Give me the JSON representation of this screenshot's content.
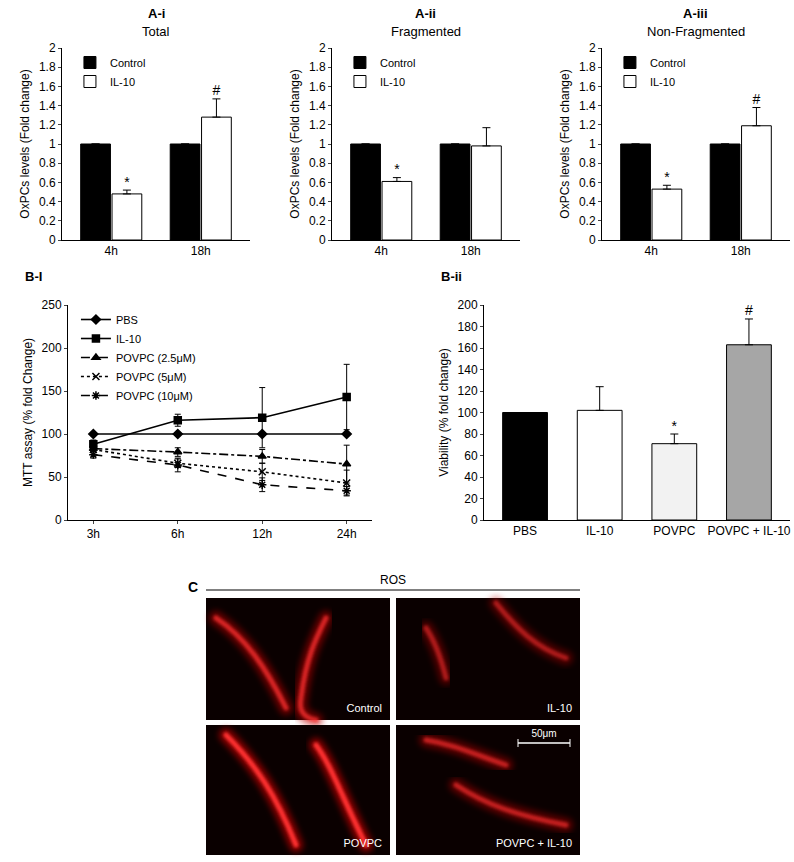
{
  "chart_data": [
    {
      "type": "bar",
      "label": "A-i",
      "title": "Total",
      "y_label": "OxPCs levels (Fold change)",
      "categories": [
        "4h",
        "18h"
      ],
      "series": [
        {
          "name": "Control",
          "color": "#000000",
          "values": [
            1,
            1
          ],
          "errors": [
            0,
            0
          ]
        },
        {
          "name": "IL-10",
          "color": "#ffffff",
          "values": [
            0.48,
            1.28
          ],
          "errors": [
            0.04,
            0.19
          ],
          "annotations": [
            "*",
            "#"
          ]
        }
      ],
      "ylim": [
        0,
        2
      ],
      "yticks": [
        0,
        0.2,
        0.4,
        0.6,
        0.8,
        1,
        1.2,
        1.4,
        1.6,
        1.8,
        2
      ],
      "legend": "upper left"
    },
    {
      "type": "bar",
      "label": "A-ii",
      "title": "Fragmented",
      "y_label": "OxPCs levels (Fold change)",
      "categories": [
        "4h",
        "18h"
      ],
      "series": [
        {
          "name": "Control",
          "color": "#000000",
          "values": [
            1,
            1
          ],
          "errors": [
            0,
            0
          ]
        },
        {
          "name": "IL-10",
          "color": "#ffffff",
          "values": [
            0.61,
            0.98
          ],
          "errors": [
            0.04,
            0.19
          ],
          "annotations": [
            "*",
            null
          ]
        }
      ],
      "ylim": [
        0,
        2
      ],
      "yticks": [
        0,
        0.2,
        0.4,
        0.6,
        0.8,
        1,
        1.2,
        1.4,
        1.6,
        1.8,
        2
      ],
      "legend": "upper left"
    },
    {
      "type": "bar",
      "label": "A-iii",
      "title": "Non-Fragmented",
      "y_label": "OxPCs levels (Fold change)",
      "categories": [
        "4h",
        "18h"
      ],
      "series": [
        {
          "name": "Control",
          "color": "#000000",
          "values": [
            1,
            1
          ],
          "errors": [
            0,
            0
          ]
        },
        {
          "name": "IL-10",
          "color": "#ffffff",
          "values": [
            0.53,
            1.19
          ],
          "errors": [
            0.04,
            0.19
          ],
          "annotations": [
            "*",
            "#"
          ]
        }
      ],
      "ylim": [
        0,
        2
      ],
      "yticks": [
        0,
        0.2,
        0.4,
        0.6,
        0.8,
        1,
        1.2,
        1.4,
        1.6,
        1.8,
        2
      ],
      "legend": "upper left"
    },
    {
      "type": "line",
      "label": "B-I",
      "y_label": "MTT assay (% fold Change)",
      "categories": [
        "3h",
        "6h",
        "12h",
        "24h"
      ],
      "series": [
        {
          "name": "PBS",
          "color": "#000000",
          "values": [
            100,
            100,
            100,
            100
          ],
          "marker": "diamond",
          "line_style": "solid"
        },
        {
          "name": "IL-10",
          "color": "#000000",
          "values": [
            88,
            116,
            119,
            143
          ],
          "errors": [
            5,
            7,
            35,
            38
          ],
          "marker": "square",
          "line_style": "solid"
        },
        {
          "name": "POVPC (2.5μM)",
          "color": "#000000",
          "values": [
            83,
            79,
            74,
            65
          ],
          "errors": [
            3,
            5,
            8,
            22
          ],
          "marker": "triangle",
          "line_style": "dashdot"
        },
        {
          "name": "POVPC (5μM)",
          "color": "#000000",
          "values": [
            82,
            66,
            56,
            43
          ],
          "errors": [
            3,
            5,
            10,
            15
          ],
          "marker": "x",
          "line_style": "dotted"
        },
        {
          "name": "POVPC (10μM)",
          "color": "#000000",
          "values": [
            76,
            64,
            41,
            34
          ],
          "errors": [
            4,
            8,
            8,
            5
          ],
          "marker": "asterisk",
          "line_style": "dashed"
        }
      ],
      "ylim": [
        0,
        250
      ],
      "yticks": [
        0,
        50,
        100,
        150,
        200,
        250
      ],
      "legend": "upper left"
    },
    {
      "type": "bar",
      "label": "B-ii",
      "y_label": "Viability (% fold change)",
      "categories": [
        "PBS",
        "IL-10",
        "POVPC",
        "POVPC + IL-10"
      ],
      "values": [
        100,
        102,
        71,
        163
      ],
      "errors": [
        0,
        22,
        9,
        24
      ],
      "colors": [
        "#000000",
        "#ffffff",
        "#f2f2f2",
        "#a6a6a6"
      ],
      "annotations": [
        null,
        null,
        "*",
        "#"
      ],
      "ylim": [
        0,
        200
      ],
      "yticks": [
        0,
        20,
        40,
        60,
        80,
        100,
        120,
        140,
        160,
        180,
        200
      ]
    }
  ],
  "image_panel": {
    "label": "C",
    "title": "ROS",
    "images": [
      "Control",
      "IL-10",
      "POVPC",
      "POVPC + IL-10"
    ],
    "scale_bar": "50μm"
  }
}
